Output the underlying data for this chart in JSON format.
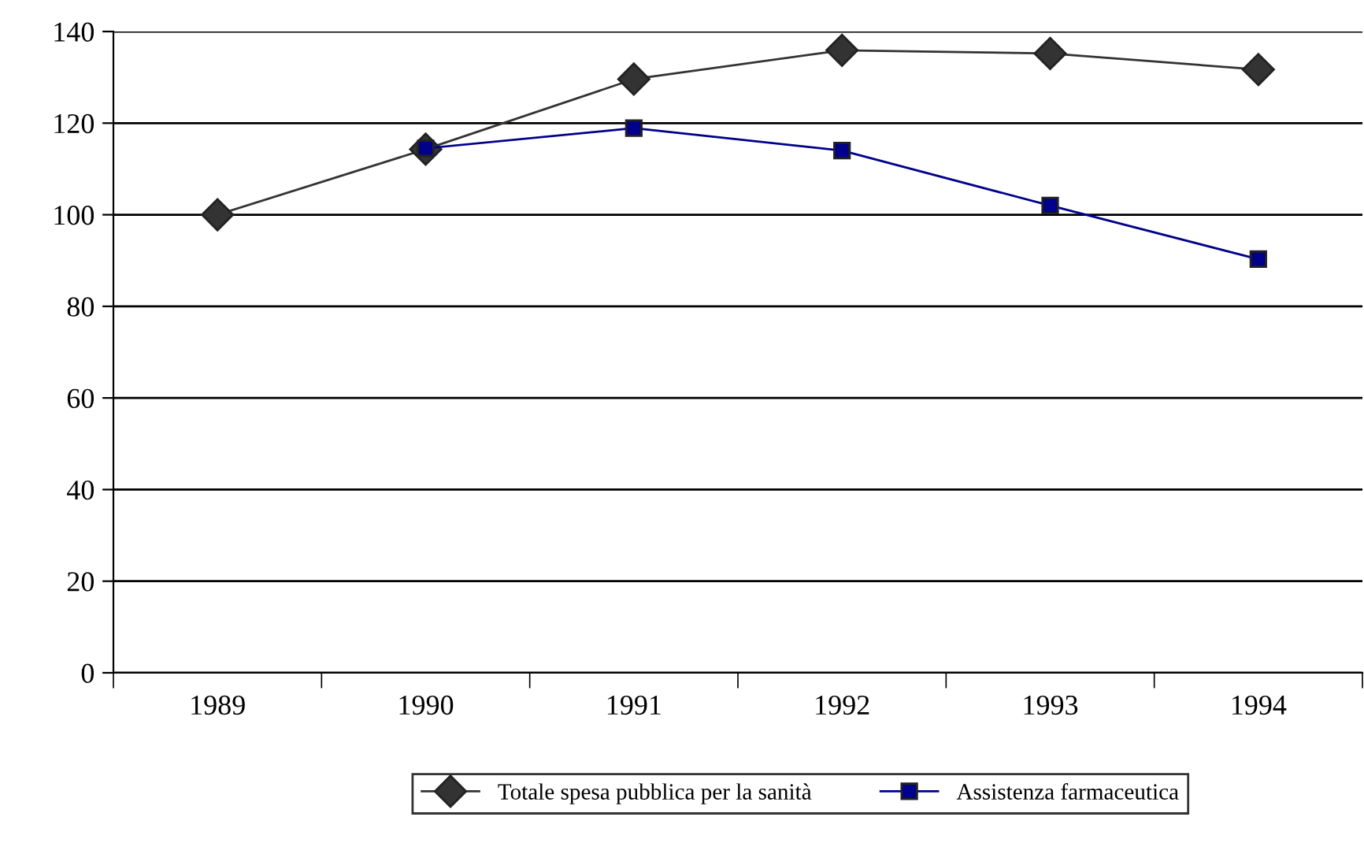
{
  "chart_data": {
    "type": "line",
    "categories": [
      "1989",
      "1990",
      "1991",
      "1992",
      "1993",
      "1994"
    ],
    "series": [
      {
        "name": "Totale spesa pubblica per la sanità",
        "color": "#333333",
        "marker": "diamond",
        "values": [
          100,
          114.3,
          129.6,
          135.9,
          135.2,
          131.7
        ]
      },
      {
        "name": "Assistenza farmaceutica",
        "color": "#00008b",
        "marker": "square",
        "values": [
          null,
          114.5,
          118.9,
          114,
          102,
          90.3
        ]
      }
    ],
    "ylim": [
      0,
      140
    ],
    "yticks": [
      0,
      20,
      40,
      60,
      80,
      100,
      120,
      140
    ],
    "grid": "y",
    "legend": "bottom",
    "line_style": "solid"
  }
}
